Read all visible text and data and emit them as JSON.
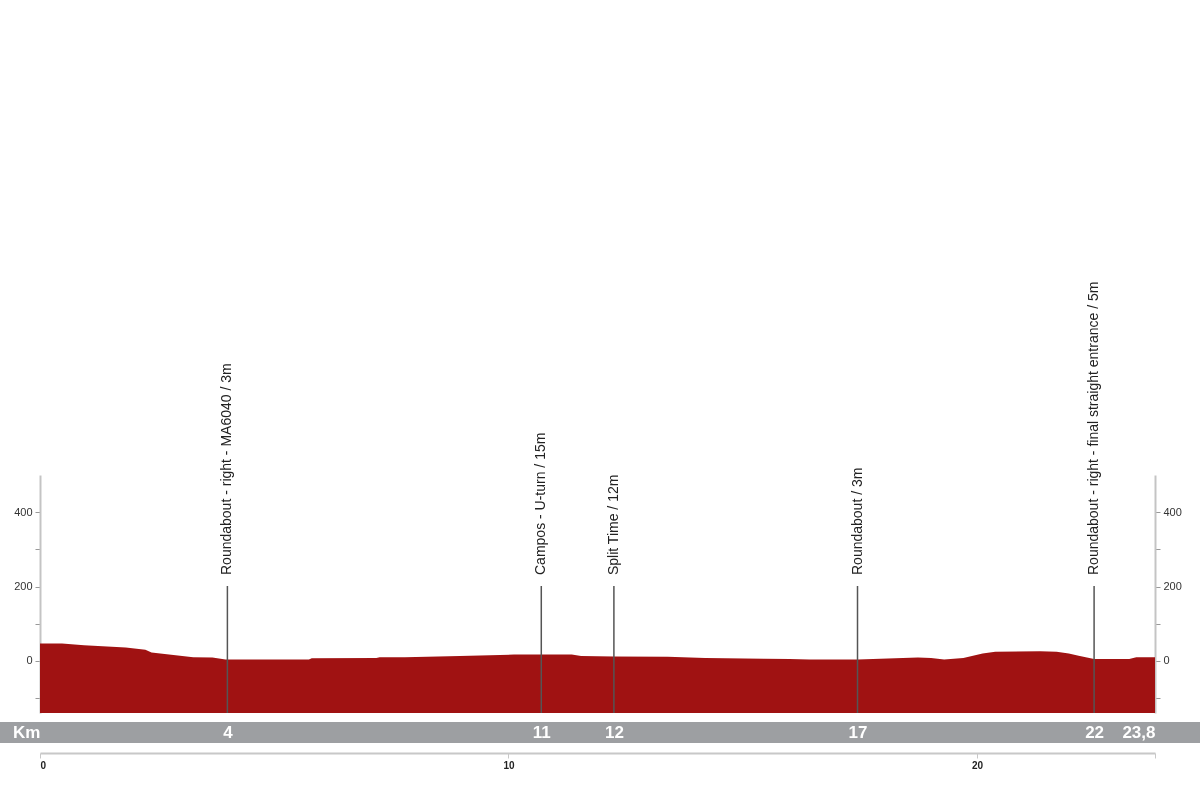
{
  "chart_data": {
    "type": "area",
    "x": [
      0,
      0.47,
      0.94,
      1.83,
      2.25,
      2.38,
      3.27,
      3.68,
      3.96,
      5.74,
      5.8,
      7.18,
      7.25,
      7.79,
      8.96,
      10.12,
      10.73,
      11.35,
      11.55,
      12.25,
      13.4,
      14.2,
      15.46,
      16.0,
      16.42,
      17.46,
      18.74,
      19.02,
      19.3,
      19.71,
      20.12,
      20.39,
      21.35,
      21.7,
      21.96,
      22.17,
      22.5,
      23.25,
      23.4,
      23.8
    ],
    "series": [
      {
        "color": "#a01212",
        "values": [
          47,
          47,
          42,
          36,
          30,
          23,
          10,
          9,
          4,
          4,
          7,
          8,
          10,
          10,
          13,
          17,
          17,
          17,
          13,
          12,
          11,
          8,
          6,
          5,
          4,
          4,
          9,
          8,
          4,
          8,
          20,
          25,
          26,
          25,
          20,
          14,
          5,
          5,
          10,
          10
        ]
      }
    ],
    "bands": [
      {
        "axis": "y",
        "from": -140,
        "to": 0,
        "color": "#a01212"
      }
    ],
    "xlim": [
      0,
      23.8
    ],
    "xticks": [
      0,
      10,
      20,
      {
        "value": 23.8,
        "label": null
      }
    ],
    "x2lim": [
      0,
      23.8
    ],
    "x2label": "Km",
    "x2ticks": [
      4,
      {
        "value": 10.7,
        "label": "11"
      },
      {
        "value": 12.25,
        "label": "12"
      },
      {
        "value": 17.45,
        "label": "17"
      },
      {
        "value": 22.5,
        "label": "22"
      },
      {
        "value": 23.8,
        "label": "23,8"
      }
    ],
    "ylim": [
      -140,
      500
    ],
    "yticks": [
      {
        "value": -100,
        "label": null
      },
      0,
      {
        "value": 100,
        "label": null
      },
      200,
      {
        "value": 300,
        "label": null
      },
      400
    ],
    "y2lim": [
      -140,
      500
    ],
    "y2ticks": [
      {
        "value": -100,
        "label": null
      },
      0,
      {
        "value": 100,
        "label": null
      },
      200,
      {
        "value": 300,
        "label": null
      },
      400
    ],
    "ref_lines": [
      {
        "axis": "x",
        "value": 4,
        "label": "Roundabout - right - MA6040 / 3m",
        "color": "#555555"
      },
      {
        "axis": "x",
        "value": 10.7,
        "label": "Campos - U-turn / 15m",
        "color": "#555555"
      },
      {
        "axis": "x",
        "value": 12.25,
        "label": "Split Time / 12m",
        "color": "#555555"
      },
      {
        "axis": "x",
        "value": 17.45,
        "label": "Roundabout / 3m",
        "color": "#555555"
      },
      {
        "axis": "x",
        "value": 22.5,
        "label": "Roundabout - right - final straight entrance / 5m",
        "color": "#555555"
      }
    ]
  }
}
